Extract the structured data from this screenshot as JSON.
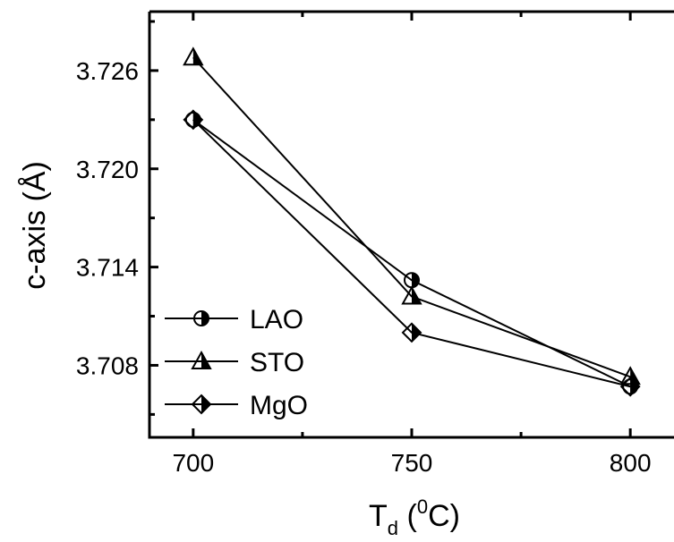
{
  "chart_data": {
    "type": "line",
    "x": [
      700,
      750,
      800
    ],
    "series": [
      {
        "name": "LAO",
        "marker": "circle-half",
        "values": [
          3.723,
          3.7132,
          3.7067
        ]
      },
      {
        "name": "STO",
        "marker": "triangle-half",
        "values": [
          3.7268,
          3.7122,
          3.7073
        ]
      },
      {
        "name": "MgO",
        "marker": "diamond-half",
        "values": [
          3.723,
          3.71,
          3.7067
        ]
      }
    ],
    "xlabel": {
      "main": "T",
      "sub": "d",
      "open": " (",
      "sup": "0",
      "unit": "C)"
    },
    "ylabel": "c-axis (Å)",
    "xlim": [
      690,
      810
    ],
    "ylim": [
      3.7036,
      3.7296
    ],
    "xticks": [
      700,
      750,
      800
    ],
    "xtick_labels": [
      "700",
      "750",
      "800"
    ],
    "xminor": [
      725,
      775
    ],
    "yticks": [
      3.708,
      3.714,
      3.72,
      3.726
    ],
    "ytick_labels": [
      "3.708",
      "3.714",
      "3.720",
      "3.726"
    ],
    "yminor": [
      3.705,
      3.711,
      3.717,
      3.723,
      3.729
    ],
    "legend_position": "bottom-left",
    "grid": false
  }
}
